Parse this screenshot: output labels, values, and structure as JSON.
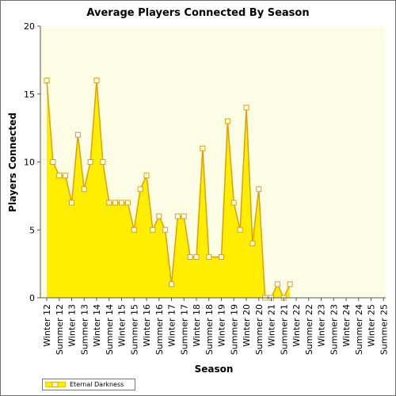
{
  "chart_data": {
    "type": "area",
    "title": "Average Players Connected By Season",
    "xlabel": "Season",
    "ylabel": "Players Connected",
    "ylim": [
      0,
      20
    ],
    "yticks": [
      0,
      5,
      10,
      15,
      20
    ],
    "grid": false,
    "legend_position": "bottom-left",
    "colors": {
      "fill": "#ffee00",
      "line": "#e0a000",
      "marker_fill": "#ffffff",
      "plot_background": "#fdfde6",
      "axis": "#555555"
    },
    "categories": [
      "Winter 12",
      "Summer 12",
      "Winter 13",
      "Summer 13",
      "Winter 14",
      "Summer 14",
      "Winter 15",
      "Summer 15",
      "Winter 16",
      "Summer 16",
      "Winter 17",
      "Summer 17",
      "Winter 18",
      "Summer 18",
      "Winter 19",
      "Summer 19",
      "Winter 20",
      "Summer 20",
      "Winter 21",
      "Summer 21",
      "Winter 22",
      "Summer 22",
      "Winter 23",
      "Summer 23",
      "Winter 24",
      "Summer 24",
      "Winter 25",
      "Summer 25"
    ],
    "x": [
      0,
      0.5,
      1,
      1.5,
      2,
      2.5,
      3,
      3.5,
      4,
      4.5,
      5,
      5.5,
      6,
      6.5,
      7,
      7.5,
      8,
      8.5,
      9,
      9.5,
      10,
      10.5,
      11,
      11.5,
      12,
      12.5,
      13,
      14,
      14.5,
      15,
      15.5,
      16,
      16.5,
      17,
      17.5,
      18,
      18.5,
      19,
      19.5,
      20,
      20.5,
      21,
      21.5,
      24,
      24.5,
      25,
      25.5,
      26
    ],
    "series": [
      {
        "name": "Eternal Darkness",
        "values": [
          16,
          10,
          9,
          9,
          7,
          12,
          8,
          10,
          16,
          10,
          7,
          7,
          7,
          7,
          5,
          8,
          9,
          5,
          6,
          5,
          1,
          6,
          6,
          3,
          3,
          11,
          3,
          3,
          13,
          7,
          5,
          14,
          4,
          8,
          0,
          0,
          1,
          0,
          1,
          null,
          null,
          null,
          null,
          null,
          null,
          null,
          null,
          null
        ]
      }
    ]
  }
}
